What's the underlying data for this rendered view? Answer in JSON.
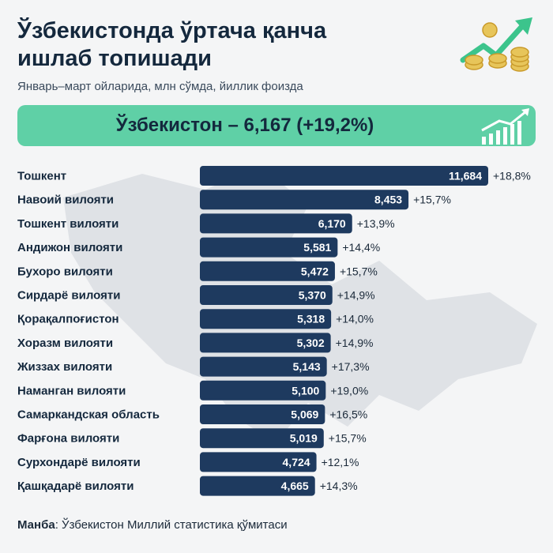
{
  "header": {
    "title_line1": "Ўзбекистонда ўртача қанча",
    "title_line2": "ишлаб топишади",
    "subtitle": "Январь–март ойларида, млн сўмда, йиллик фоизда"
  },
  "summary": {
    "text": "Ўзбекистон – 6,167 (+19,2%)"
  },
  "colors": {
    "bar": "#1e3a5f",
    "banner": "#5fd0a6",
    "accent_green": "#3cc48c",
    "coin": "#e7c55a"
  },
  "icons": [
    "coins-growth-icon",
    "growth-chart-icon",
    "uzbekistan-map"
  ],
  "chart_data": {
    "type": "bar",
    "orientation": "horizontal",
    "categories": [
      "Тошкент",
      "Навоий вилояти",
      "Тошкент вилояти",
      "Андижон вилояти",
      "Бухоро вилояти",
      "Сирдарё вилояти",
      "Қорақалпоғистон",
      "Хоразм вилояти",
      "Жиззах вилояти",
      "Наманган вилояти",
      "Самаркандская область",
      "Фарғона вилояти",
      "Сурхондарё вилояти",
      "Қашқадарё вилояти"
    ],
    "values": [
      11.684,
      8.453,
      6.17,
      5.581,
      5.472,
      5.37,
      5.318,
      5.302,
      5.143,
      5.1,
      5.069,
      5.019,
      4.724,
      4.665
    ],
    "value_labels": [
      "11,684",
      "8,453",
      "6,170",
      "5,581",
      "5,472",
      "5,370",
      "5,318",
      "5,302",
      "5,143",
      "5,100",
      "5,069",
      "5,019",
      "4,724",
      "4,665"
    ],
    "growth_labels": [
      "+18,8%",
      "+15,7%",
      "+13,9%",
      "+14,4%",
      "+15,7%",
      "+14,9%",
      "+14,0%",
      "+14,9%",
      "+17,3%",
      "+19,0%",
      "+16,5%",
      "+15,7%",
      "+12,1%",
      "+14,3%"
    ],
    "xlim": [
      0,
      11.684
    ]
  },
  "footer": {
    "source_label": "Манба",
    "source_text": ": Ўзбекистон Миллий статистика қўмитаси"
  }
}
